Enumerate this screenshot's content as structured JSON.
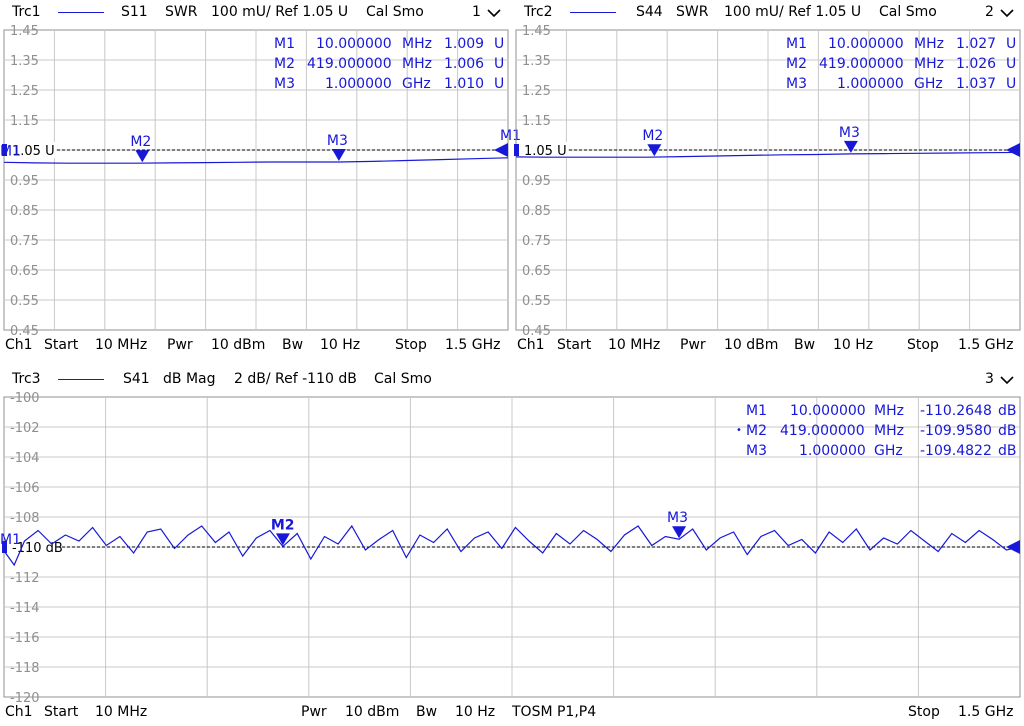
{
  "colors": {
    "trace": "#1818d8",
    "grid": "#c8c8c8",
    "frame": "#909090",
    "reference": "#000000",
    "tick_text": "#909090"
  },
  "panels": [
    {
      "id": "trc1",
      "header": {
        "trace": "Trc1",
        "param": "S11",
        "format": "SWR",
        "scale": "100 mU/ Ref 1.05 U",
        "cal": "Cal Smo",
        "number": "1"
      },
      "footer": {
        "channel": "Ch1",
        "start_label": "Start",
        "start_value": "10 MHz",
        "pwr_label": "Pwr",
        "pwr_value": "10 dBm",
        "bw_label": "Bw",
        "bw_value": "10 Hz",
        "stop_label": "Stop",
        "stop_value": "1.5 GHz"
      },
      "markers": [
        {
          "name": "M1",
          "freq": "10.000000",
          "unit": "MHz",
          "value": "1.009",
          "vunit": "U",
          "active": false
        },
        {
          "name": "M2",
          "freq": "419.000000",
          "unit": "MHz",
          "value": "1.006",
          "vunit": "U",
          "active": false
        },
        {
          "name": "M3",
          "freq": "1.000000",
          "unit": "GHz",
          "value": "1.010",
          "vunit": "U",
          "active": false
        }
      ],
      "ref_label": "1.05 U",
      "stimulus_end_marker_label": "M1",
      "chart_data": {
        "type": "line",
        "ylim": [
          0.45,
          1.45
        ],
        "xlim": [
          10,
          1500
        ],
        "x_unit": "MHz",
        "yticks": [
          "1.45",
          "1.35",
          "1.25",
          "1.15",
          "1.05",
          "0.95",
          "0.85",
          "0.75",
          "0.65",
          "0.55",
          "0.45"
        ],
        "reference": 1.05,
        "series": [
          {
            "x": [
              10,
              100,
              200,
              300,
              400,
              500,
              600,
              700,
              800,
              900,
              1000,
              1100,
              1200,
              1300,
              1400,
              1500
            ],
            "y": [
              1.009,
              1.007,
              1.006,
              1.006,
              1.006,
              1.007,
              1.008,
              1.009,
              1.01,
              1.01,
              1.01,
              1.012,
              1.015,
              1.018,
              1.021,
              1.024
            ]
          }
        ],
        "marker_points": [
          {
            "name": "M1",
            "x": 10,
            "y": 1.009
          },
          {
            "name": "M2",
            "x": 419,
            "y": 1.006
          },
          {
            "name": "M3",
            "x": 1000,
            "y": 1.01
          }
        ]
      }
    },
    {
      "id": "trc2",
      "header": {
        "trace": "Trc2",
        "param": "S44",
        "format": "SWR",
        "scale": "100 mU/ Ref 1.05 U",
        "cal": "Cal Smo",
        "number": "2"
      },
      "footer": {
        "channel": "Ch1",
        "start_label": "Start",
        "start_value": "10 MHz",
        "pwr_label": "Pwr",
        "pwr_value": "10 dBm",
        "bw_label": "Bw",
        "bw_value": "10 Hz",
        "stop_label": "Stop",
        "stop_value": "1.5 GHz"
      },
      "markers": [
        {
          "name": "M1",
          "freq": "10.000000",
          "unit": "MHz",
          "value": "1.027",
          "vunit": "U",
          "active": false
        },
        {
          "name": "M2",
          "freq": "419.000000",
          "unit": "MHz",
          "value": "1.026",
          "vunit": "U",
          "active": false
        },
        {
          "name": "M3",
          "freq": "1.000000",
          "unit": "GHz",
          "value": "1.037",
          "vunit": "U",
          "active": false
        }
      ],
      "ref_label": "1.05 U",
      "chart_data": {
        "type": "line",
        "ylim": [
          0.45,
          1.45
        ],
        "xlim": [
          10,
          1500
        ],
        "x_unit": "MHz",
        "yticks": [
          "1.45",
          "1.35",
          "1.25",
          "1.15",
          "1.05",
          "0.95",
          "0.85",
          "0.75",
          "0.65",
          "0.55",
          "0.45"
        ],
        "reference": 1.05,
        "series": [
          {
            "x": [
              10,
              100,
              200,
              300,
              400,
              500,
              600,
              700,
              800,
              900,
              1000,
              1100,
              1200,
              1300,
              1400,
              1500
            ],
            "y": [
              1.027,
              1.026,
              1.026,
              1.026,
              1.026,
              1.028,
              1.03,
              1.032,
              1.034,
              1.035,
              1.037,
              1.038,
              1.039,
              1.04,
              1.041,
              1.042
            ]
          }
        ],
        "marker_points": [
          {
            "name": "M2",
            "x": 419,
            "y": 1.026
          },
          {
            "name": "M3",
            "x": 1000,
            "y": 1.037
          }
        ]
      }
    },
    {
      "id": "trc3",
      "header": {
        "trace": "Trc3",
        "param": "S41",
        "format": "dB Mag",
        "scale": "2 dB/ Ref -110 dB",
        "cal": "Cal Smo",
        "number": "3"
      },
      "footer": {
        "channel": "Ch1",
        "start_label": "Start",
        "start_value": "10 MHz",
        "pwr_label": "Pwr",
        "pwr_value": "10 dBm",
        "bw_label": "Bw",
        "bw_value": "10 Hz",
        "cal_label": "TOSM P1,P4",
        "stop_label": "Stop",
        "stop_value": "1.5 GHz"
      },
      "markers": [
        {
          "name": "M1",
          "freq": "10.000000",
          "unit": "MHz",
          "value": "-110.2648",
          "vunit": "dB",
          "active": false
        },
        {
          "name": "M2",
          "freq": "419.000000",
          "unit": "MHz",
          "value": "-109.9580",
          "vunit": "dB",
          "active": true
        },
        {
          "name": "M3",
          "freq": "1.000000",
          "unit": "GHz",
          "value": "-109.4822",
          "vunit": "dB",
          "active": false
        }
      ],
      "ref_label": "-110 dB",
      "chart_data": {
        "type": "line",
        "ylim": [
          -120,
          -100
        ],
        "xlim": [
          10,
          1500
        ],
        "x_unit": "MHz",
        "yticks": [
          "-100",
          "-102",
          "-104",
          "-106",
          "-108",
          "-110",
          "-112",
          "-114",
          "-116",
          "-118",
          "-120"
        ],
        "reference": -110,
        "series": [
          {
            "x": [
              10,
              25,
              40,
              60,
              80,
              100,
              120,
              140,
              160,
              180,
              200,
              220,
              240,
              260,
              280,
              300,
              320,
              340,
              360,
              380,
              400,
              419,
              440,
              460,
              480,
              500,
              520,
              540,
              560,
              580,
              600,
              620,
              640,
              660,
              680,
              700,
              720,
              740,
              760,
              780,
              800,
              820,
              840,
              860,
              880,
              900,
              920,
              940,
              960,
              980,
              1000,
              1020,
              1040,
              1060,
              1080,
              1100,
              1120,
              1140,
              1160,
              1180,
              1200,
              1220,
              1240,
              1260,
              1280,
              1300,
              1320,
              1340,
              1360,
              1380,
              1400,
              1420,
              1440,
              1460,
              1480,
              1500
            ],
            "y": [
              -110.26,
              -111.2,
              -109.6,
              -108.9,
              -109.8,
              -109.2,
              -109.6,
              -108.7,
              -109.9,
              -109.3,
              -110.4,
              -109.0,
              -108.8,
              -110.1,
              -109.2,
              -108.6,
              -109.7,
              -109.0,
              -110.6,
              -109.4,
              -108.9,
              -109.96,
              -109.1,
              -110.8,
              -109.3,
              -109.8,
              -108.6,
              -110.2,
              -109.5,
              -108.9,
              -110.7,
              -109.2,
              -109.7,
              -108.8,
              -110.3,
              -109.4,
              -109.0,
              -110.1,
              -108.7,
              -109.6,
              -110.4,
              -109.1,
              -109.8,
              -108.9,
              -109.5,
              -110.3,
              -109.2,
              -108.6,
              -109.9,
              -109.3,
              -109.48,
              -108.8,
              -110.2,
              -109.4,
              -109.0,
              -110.5,
              -109.3,
              -108.9,
              -109.9,
              -109.5,
              -110.4,
              -109.0,
              -109.7,
              -108.8,
              -110.2,
              -109.4,
              -109.8,
              -108.9,
              -109.6,
              -110.3,
              -109.1,
              -109.7,
              -108.9,
              -109.5,
              -110.2,
              -110.0
            ]
          }
        ],
        "marker_points": [
          {
            "name": "M1",
            "x": 10,
            "y": -110.2648
          },
          {
            "name": "M2",
            "x": 419,
            "y": -109.958
          },
          {
            "name": "M3",
            "x": 1000,
            "y": -109.4822
          }
        ]
      }
    }
  ]
}
